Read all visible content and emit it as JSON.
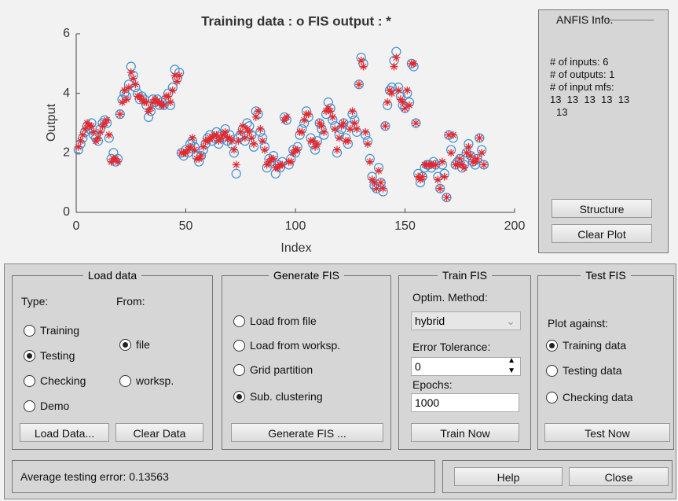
{
  "chart_data": {
    "type": "scatter",
    "title": "Training data : o   FIS output : *",
    "xlabel": "Index",
    "ylabel": "Output",
    "xlim": [
      0,
      200
    ],
    "xticks": [
      0,
      50,
      100,
      150,
      200
    ],
    "ylim": [
      0,
      6
    ],
    "yticks": [
      0,
      2,
      4,
      6
    ],
    "x": [
      1,
      2,
      3,
      4,
      5,
      6,
      7,
      8,
      9,
      10,
      11,
      12,
      13,
      14,
      15,
      16,
      17,
      18,
      19,
      20,
      21,
      22,
      23,
      24,
      25,
      26,
      27,
      28,
      29,
      30,
      31,
      32,
      33,
      34,
      35,
      36,
      37,
      38,
      39,
      40,
      41,
      42,
      43,
      44,
      45,
      46,
      47,
      48,
      49,
      50,
      51,
      52,
      53,
      54,
      55,
      56,
      57,
      58,
      59,
      60,
      61,
      62,
      63,
      64,
      65,
      66,
      67,
      68,
      69,
      70,
      71,
      72,
      73,
      74,
      75,
      76,
      77,
      78,
      79,
      80,
      81,
      82,
      83,
      84,
      85,
      86,
      87,
      88,
      89,
      90,
      91,
      92,
      93,
      94,
      95,
      96,
      97,
      98,
      99,
      100,
      101,
      102,
      103,
      104,
      105,
      106,
      107,
      108,
      109,
      110,
      111,
      112,
      113,
      114,
      115,
      116,
      117,
      118,
      119,
      120,
      121,
      122,
      123,
      124,
      125,
      126,
      127,
      128,
      129,
      130,
      131,
      132,
      133,
      134,
      135,
      136,
      137,
      138,
      139,
      140,
      141,
      142,
      143,
      144,
      145,
      146,
      147,
      148,
      149,
      150,
      151,
      152,
      153,
      154,
      155,
      156,
      157,
      158,
      159,
      160,
      161,
      162,
      163,
      164,
      165,
      166,
      167,
      168,
      169,
      170,
      171,
      172,
      173,
      174,
      175,
      176,
      177,
      178,
      179,
      180,
      181,
      182,
      183,
      184,
      185,
      186
    ],
    "series": [
      {
        "marker": "o",
        "color": "#3d8fd1",
        "values": [
          2.1,
          2.3,
          2.5,
          2.7,
          2.9,
          2.8,
          3.0,
          2.6,
          2.5,
          2.4,
          2.8,
          3.0,
          3.1,
          3.0,
          2.5,
          1.8,
          2.0,
          1.7,
          1.8,
          3.3,
          3.8,
          4.0,
          3.9,
          4.3,
          4.9,
          4.6,
          4.2,
          4.0,
          3.8,
          3.9,
          3.8,
          3.6,
          3.2,
          3.4,
          3.8,
          3.7,
          3.8,
          3.6,
          3.7,
          3.6,
          3.8,
          4.0,
          3.6,
          4.2,
          4.8,
          4.5,
          4.7,
          2.0,
          1.9,
          2.1,
          2.0,
          2.3,
          2.4,
          2.2,
          1.9,
          1.7,
          1.9,
          2.1,
          2.3,
          2.5,
          2.6,
          2.4,
          2.5,
          2.7,
          2.3,
          2.6,
          2.5,
          2.8,
          2.4,
          2.6,
          2.3,
          2.0,
          1.3,
          2.5,
          2.6,
          2.8,
          2.4,
          3.0,
          2.9,
          2.6,
          2.2,
          3.4,
          3.3,
          2.7,
          2.5,
          2.2,
          1.5,
          1.8,
          1.7,
          1.9,
          1.3,
          1.6,
          1.5,
          1.7,
          3.2,
          3.1,
          1.6,
          1.8,
          2.1,
          2.0,
          2.2,
          2.6,
          2.8,
          3.0,
          3.4,
          3.2,
          2.5,
          2.3,
          2.1,
          2.4,
          3.0,
          2.8,
          2.6,
          3.3,
          3.7,
          3.5,
          3.1,
          2.9,
          2.0,
          2.6,
          2.8,
          3.0,
          2.5,
          2.3,
          2.9,
          3.3,
          3.1,
          2.7,
          4.3,
          5.2,
          5.0,
          2.6,
          2.4,
          1.8,
          1.2,
          0.9,
          0.8,
          1.5,
          1.0,
          0.7,
          2.9,
          3.6,
          4.1,
          4.2,
          5.1,
          5.4,
          4.2,
          3.9,
          3.6,
          3.5,
          4.0,
          3.7,
          5.0,
          4.9,
          3.0,
          1.3,
          1.0,
          1.2,
          1.5,
          1.6,
          1.6,
          1.5,
          1.7,
          1.6,
          1.2,
          0.8,
          1.6,
          1.3,
          0.5,
          2.6,
          2.1,
          2.5,
          1.6,
          1.7,
          1.8,
          1.5,
          1.6,
          2.0,
          2.3,
          1.9,
          1.7,
          1.6,
          1.8,
          2.5,
          2.1,
          1.6
        ]
      },
      {
        "marker": "*",
        "color": "#e8262a",
        "values": [
          2.2,
          2.4,
          2.6,
          2.8,
          3.0,
          2.9,
          2.9,
          2.7,
          2.4,
          2.5,
          2.7,
          2.9,
          3.0,
          3.1,
          2.6,
          1.7,
          1.8,
          1.8,
          1.7,
          3.3,
          3.7,
          4.1,
          3.8,
          4.2,
          4.7,
          4.5,
          4.3,
          3.9,
          3.9,
          3.8,
          3.7,
          3.7,
          3.4,
          3.5,
          3.7,
          3.8,
          3.7,
          3.7,
          3.6,
          3.6,
          3.9,
          3.9,
          3.7,
          4.1,
          4.6,
          4.4,
          4.6,
          2.0,
          2.0,
          2.0,
          2.1,
          2.2,
          2.5,
          2.1,
          1.8,
          1.8,
          1.9,
          2.2,
          2.4,
          2.4,
          2.5,
          2.5,
          2.6,
          2.6,
          2.4,
          2.5,
          2.6,
          2.7,
          2.5,
          2.5,
          2.4,
          2.1,
          1.6,
          2.4,
          2.7,
          2.9,
          2.5,
          2.8,
          2.7,
          2.5,
          2.3,
          3.2,
          3.4,
          2.8,
          2.4,
          2.1,
          1.6,
          1.7,
          1.8,
          1.8,
          1.5,
          1.5,
          1.6,
          1.6,
          3.1,
          3.2,
          1.7,
          1.7,
          2.0,
          2.1,
          2.1,
          2.7,
          2.7,
          3.1,
          3.3,
          3.3,
          2.4,
          2.4,
          2.2,
          2.3,
          3.0,
          2.9,
          2.7,
          3.4,
          3.5,
          3.4,
          3.2,
          2.8,
          2.1,
          2.5,
          2.9,
          3.0,
          2.4,
          2.4,
          2.8,
          3.4,
          3.0,
          2.8,
          4.3,
          5.1,
          4.9,
          2.7,
          2.3,
          1.7,
          1.1,
          1.0,
          0.8,
          1.4,
          1.0,
          0.8,
          2.9,
          3.7,
          4.1,
          4.0,
          4.9,
          5.2,
          4.1,
          3.8,
          3.7,
          3.5,
          4.1,
          3.6,
          5.0,
          5.0,
          3.0,
          1.2,
          1.1,
          1.2,
          1.6,
          1.6,
          1.6,
          1.6,
          1.6,
          1.6,
          1.1,
          0.8,
          1.7,
          1.2,
          0.5,
          2.6,
          2.0,
          2.6,
          1.6,
          1.6,
          1.8,
          1.6,
          1.5,
          2.0,
          2.2,
          1.9,
          1.7,
          1.7,
          1.8,
          2.5,
          2.0,
          1.6
        ]
      }
    ]
  },
  "info_panel": {
    "title": "ANFIS Info.",
    "lines": [
      "# of inputs: 6",
      "# of outputs: 1",
      "# of input mfs:",
      "13  13  13  13  13",
      "13"
    ],
    "buttons": [
      "Structure",
      "Clear Plot"
    ]
  },
  "load_data": {
    "title": "Load data",
    "type_label": "Type:",
    "from_label": "From:",
    "type_options": [
      {
        "label": "Training",
        "selected": false
      },
      {
        "label": "Testing",
        "selected": true
      },
      {
        "label": "Checking",
        "selected": false
      },
      {
        "label": "Demo",
        "selected": false
      }
    ],
    "from_options": [
      {
        "label": "file",
        "selected": true
      },
      {
        "label": "worksp.",
        "selected": false
      }
    ],
    "buttons": [
      "Load Data...",
      "Clear Data"
    ]
  },
  "generate_fis": {
    "title": "Generate FIS",
    "options": [
      {
        "label": "Load from file",
        "selected": false
      },
      {
        "label": "Load from worksp.",
        "selected": false
      },
      {
        "label": "Grid partition",
        "selected": false
      },
      {
        "label": "Sub. clustering",
        "selected": true
      }
    ],
    "button": "Generate FIS ..."
  },
  "train_fis": {
    "title": "Train FIS",
    "method_label": "Optim. Method:",
    "method": "hybrid",
    "tolerance_label": "Error Tolerance:",
    "tolerance": "0",
    "epochs_label": "Epochs:",
    "epochs": "1000",
    "button": "Train Now"
  },
  "test_fis": {
    "title": "Test FIS",
    "plot_label": "Plot against:",
    "options": [
      {
        "label": "Training data",
        "selected": true
      },
      {
        "label": "Testing data",
        "selected": false
      },
      {
        "label": "Checking data",
        "selected": false
      }
    ],
    "button": "Test Now"
  },
  "status": "Average testing error: 0.13563",
  "footer_buttons": [
    "Help",
    "Close"
  ]
}
